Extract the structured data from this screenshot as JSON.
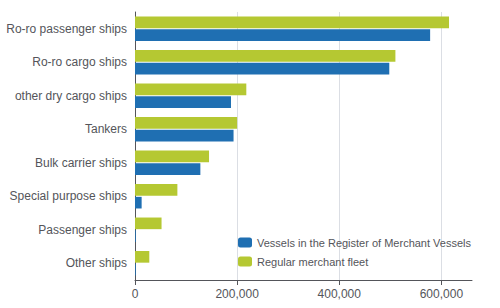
{
  "chart_data": {
    "type": "bar",
    "orientation": "horizontal",
    "categories": [
      "Ro-ro passenger ships",
      "Ro-ro cargo ships",
      "other dry cargo ships",
      "Tankers",
      "Bulk carrier ships",
      "Special purpose ships",
      "Passenger ships",
      "Other ships"
    ],
    "series": [
      {
        "name": "Regular merchant fleet",
        "color": "#b5c832",
        "values": [
          615000,
          510000,
          218000,
          200000,
          145000,
          83000,
          52000,
          28000
        ]
      },
      {
        "name": "Vessels in the Register of Merchant Vessels",
        "color": "#1f6fb2",
        "values": [
          578000,
          498000,
          188000,
          193000,
          128000,
          13000,
          1500,
          1500
        ]
      }
    ],
    "xlim": [
      0,
      660000
    ],
    "xticks": [
      0,
      {
        "value": 200000,
        "label": "200,000"
      },
      {
        "value": 400000,
        "label": "400,000"
      },
      {
        "value": 600000,
        "label": "600,000"
      }
    ],
    "grid": true,
    "legend": "lower right"
  }
}
